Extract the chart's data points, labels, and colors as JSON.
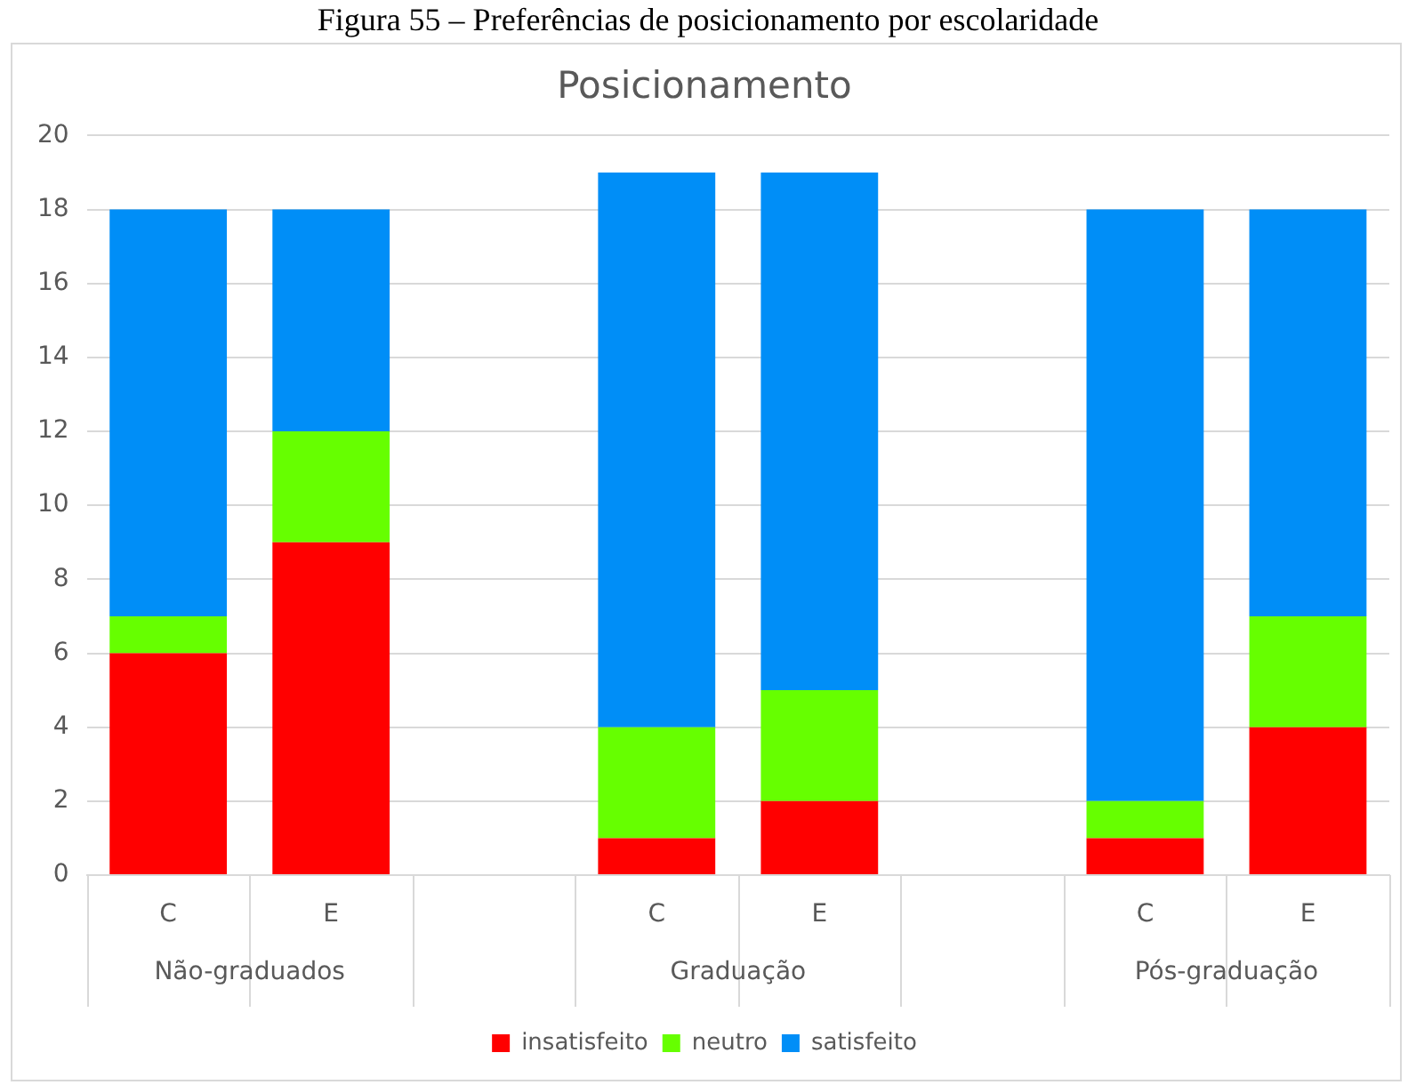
{
  "chart_data": {
    "type": "bar",
    "title": "Posicionamento",
    "stacked": true,
    "categories": [
      "C",
      "E",
      null,
      "C",
      "E",
      null,
      "C",
      "E"
    ],
    "series": [
      {
        "name": "insatisfeito",
        "color": "#ff0000",
        "values": [
          6,
          9,
          null,
          1,
          2,
          null,
          1,
          4
        ]
      },
      {
        "name": "neutro",
        "color": "#66ff00",
        "values": [
          1,
          3,
          null,
          3,
          3,
          null,
          1,
          3
        ]
      },
      {
        "name": "satisfeito",
        "color": "#008ef7",
        "values": [
          11,
          6,
          null,
          15,
          14,
          null,
          16,
          11
        ]
      }
    ],
    "ylim": [
      0,
      20
    ],
    "yticks": [
      0,
      2,
      4,
      6,
      8,
      10,
      12,
      14,
      16,
      18,
      20
    ],
    "grid": "y",
    "legend": "bottom",
    "annotations": [
      "Figura 55 – Preferências de posicionamento por escolaridade",
      "Não-graduados",
      "Graduação",
      "Pós-graduação"
    ]
  }
}
